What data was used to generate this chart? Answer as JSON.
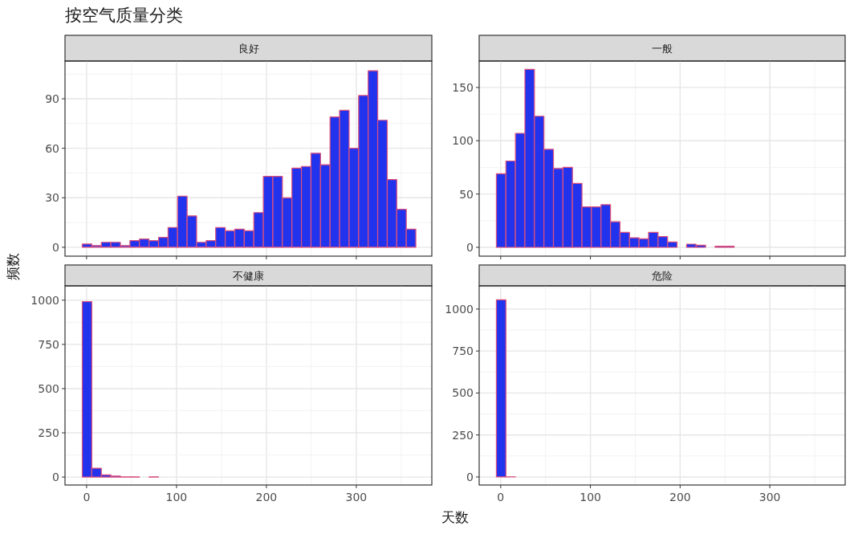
{
  "chart_data": [
    {
      "type": "histogram",
      "title": "良好",
      "annotations": [
        "按空气质量分类"
      ],
      "ylabel": "频数",
      "color": "#2233ee",
      "grid": true,
      "tick_labels": "y",
      "xlim": [
        -24,
        384
      ],
      "xticks": [
        0,
        100,
        200,
        300
      ],
      "ylim": [
        -5.4,
        112.9
      ],
      "yticks": [
        0,
        30,
        60,
        90
      ],
      "bins": [
        -4.8,
        5.8,
        16.4,
        27,
        37.6,
        48.2,
        58.8,
        69.4,
        80,
        90.6,
        101.2,
        111.8,
        122.4,
        133,
        143.6,
        154.2,
        164.8,
        175.4,
        186,
        196.6,
        207.2,
        217.8,
        228.4,
        239,
        249.6,
        260.2,
        270.8,
        281.4,
        292,
        302.6,
        313.2,
        323.8,
        334.4,
        345,
        355.6,
        366.2
      ],
      "values": [
        2,
        1,
        3,
        3,
        1,
        4,
        5,
        4,
        6,
        12,
        31,
        19,
        3,
        4,
        12,
        10,
        11,
        10,
        21,
        43,
        43,
        30,
        48,
        49,
        57,
        50,
        79,
        83,
        60,
        92,
        107,
        77,
        41,
        23,
        11
      ]
    },
    {
      "type": "histogram",
      "title": "一般",
      "color": "#2233ee",
      "grid": true,
      "tick_labels": "y",
      "xlim": [
        -24,
        384
      ],
      "xticks": [
        0,
        100,
        200,
        300
      ],
      "ylim": [
        -8.3,
        174.8
      ],
      "yticks": [
        0,
        50,
        100,
        150
      ],
      "bins": [
        -4.8,
        5.8,
        16.4,
        27,
        37.6,
        48.2,
        58.8,
        69.4,
        80,
        90.6,
        101.2,
        111.8,
        122.4,
        133,
        143.6,
        154.2,
        164.8,
        175.4,
        186,
        196.6,
        207.2,
        217.8,
        228.4,
        239,
        249.6,
        260.2,
        270.8,
        281.4,
        292,
        302.6,
        313.2,
        323.8,
        334.4,
        345,
        355.6,
        366.2
      ],
      "values": [
        69,
        81,
        107,
        167,
        123,
        92,
        74,
        75,
        60,
        38,
        38,
        40,
        24,
        14,
        9,
        8,
        14,
        10,
        5,
        0,
        3,
        2,
        0,
        1,
        1,
        0,
        0,
        0,
        0,
        0,
        0,
        0,
        0,
        0,
        0
      ]
    },
    {
      "type": "histogram",
      "title": "不健康",
      "xlabel": "天数",
      "color": "#2233ee",
      "grid": true,
      "xlim": [
        -24,
        384
      ],
      "xticks": [
        0,
        100,
        200,
        300
      ],
      "ylim": [
        -45,
        1081
      ],
      "yticks": [
        0,
        250,
        500,
        750,
        1000
      ],
      "bins": [
        -4.8,
        5.8,
        16.4,
        27,
        37.6,
        48.2,
        58.8,
        69.4,
        80,
        90.6,
        101.2,
        111.8,
        122.4,
        133,
        143.6,
        154.2,
        164.8,
        175.4,
        186,
        196.6,
        207.2,
        217.8,
        228.4,
        239,
        249.6,
        260.2,
        270.8,
        281.4,
        292,
        302.6,
        313.2,
        323.8,
        334.4,
        345,
        355.6,
        366.2
      ],
      "values": [
        992,
        50,
        12,
        6,
        1,
        1,
        0,
        1,
        0,
        0,
        0,
        0,
        0,
        0,
        0,
        0,
        0,
        0,
        0,
        0,
        0,
        0,
        0,
        0,
        0,
        0,
        0,
        0,
        0,
        0,
        0,
        0,
        0,
        0,
        0
      ]
    },
    {
      "type": "histogram",
      "title": "危险",
      "color": "#2233ee",
      "grid": true,
      "xlim": [
        -24,
        384
      ],
      "xticks": [
        0,
        100,
        200,
        300
      ],
      "ylim": [
        -48,
        1138
      ],
      "yticks": [
        0,
        250,
        500,
        750,
        1000
      ],
      "bins": [
        -4.8,
        5.8,
        16.4,
        27,
        37.6,
        48.2,
        58.8,
        69.4,
        80,
        90.6,
        101.2,
        111.8,
        122.4,
        133,
        143.6,
        154.2,
        164.8,
        175.4,
        186,
        196.6,
        207.2,
        217.8,
        228.4,
        239,
        249.6,
        260.2,
        270.8,
        281.4,
        292,
        302.6,
        313.2,
        323.8,
        334.4,
        345,
        355.6,
        366.2
      ],
      "values": [
        1055,
        1,
        0,
        0,
        0,
        0,
        0,
        0,
        0,
        0,
        0,
        0,
        0,
        0,
        0,
        0,
        0,
        0,
        0,
        0,
        0,
        0,
        0,
        0,
        0,
        0,
        0,
        0,
        0,
        0,
        0,
        0,
        0,
        0,
        0
      ]
    }
  ]
}
